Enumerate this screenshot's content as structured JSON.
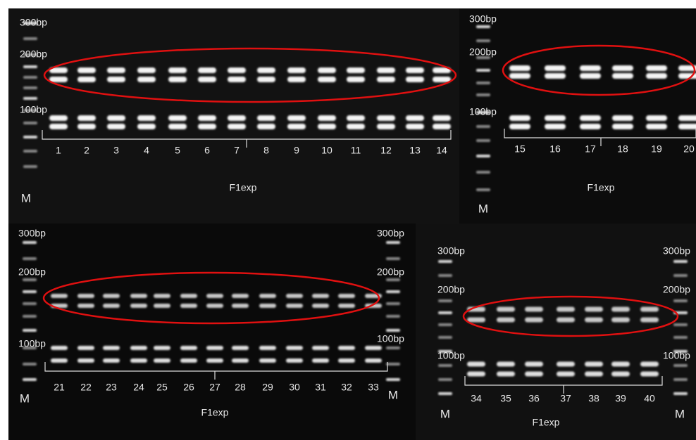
{
  "panels": [
    {
      "markers_left": [
        "300bp",
        "200bp",
        "100bp"
      ],
      "lanes": [
        "1",
        "2",
        "3",
        "4",
        "5",
        "6",
        "7",
        "8",
        "9",
        "10",
        "11",
        "12",
        "13",
        "14"
      ],
      "group_label": "F1exp",
      "ladder_labels": [
        "M"
      ]
    },
    {
      "markers_left": [
        "300bp",
        "200bp",
        "100bp"
      ],
      "lanes": [
        "15",
        "16",
        "17",
        "18",
        "19",
        "20"
      ],
      "group_label": "F1exp",
      "ladder_labels": [
        "M"
      ]
    },
    {
      "markers_left": [
        "300bp",
        "200bp",
        "100bp"
      ],
      "markers_right": [
        "300bp",
        "200bp",
        "100bp"
      ],
      "lanes": [
        "21",
        "22",
        "23",
        "24",
        "25",
        "26",
        "27",
        "28",
        "29",
        "30",
        "31",
        "32",
        "33"
      ],
      "group_label": "F1exp",
      "ladder_labels": [
        "M",
        "M"
      ]
    },
    {
      "markers_left": [
        "300bp",
        "200bp",
        "100bp"
      ],
      "markers_right": [
        "300bp",
        "200bp",
        "100bp"
      ],
      "lanes": [
        "34",
        "35",
        "36",
        "37",
        "38",
        "39",
        "40"
      ],
      "group_label": "F1exp",
      "ladder_labels": [
        "M",
        "M"
      ]
    }
  ]
}
